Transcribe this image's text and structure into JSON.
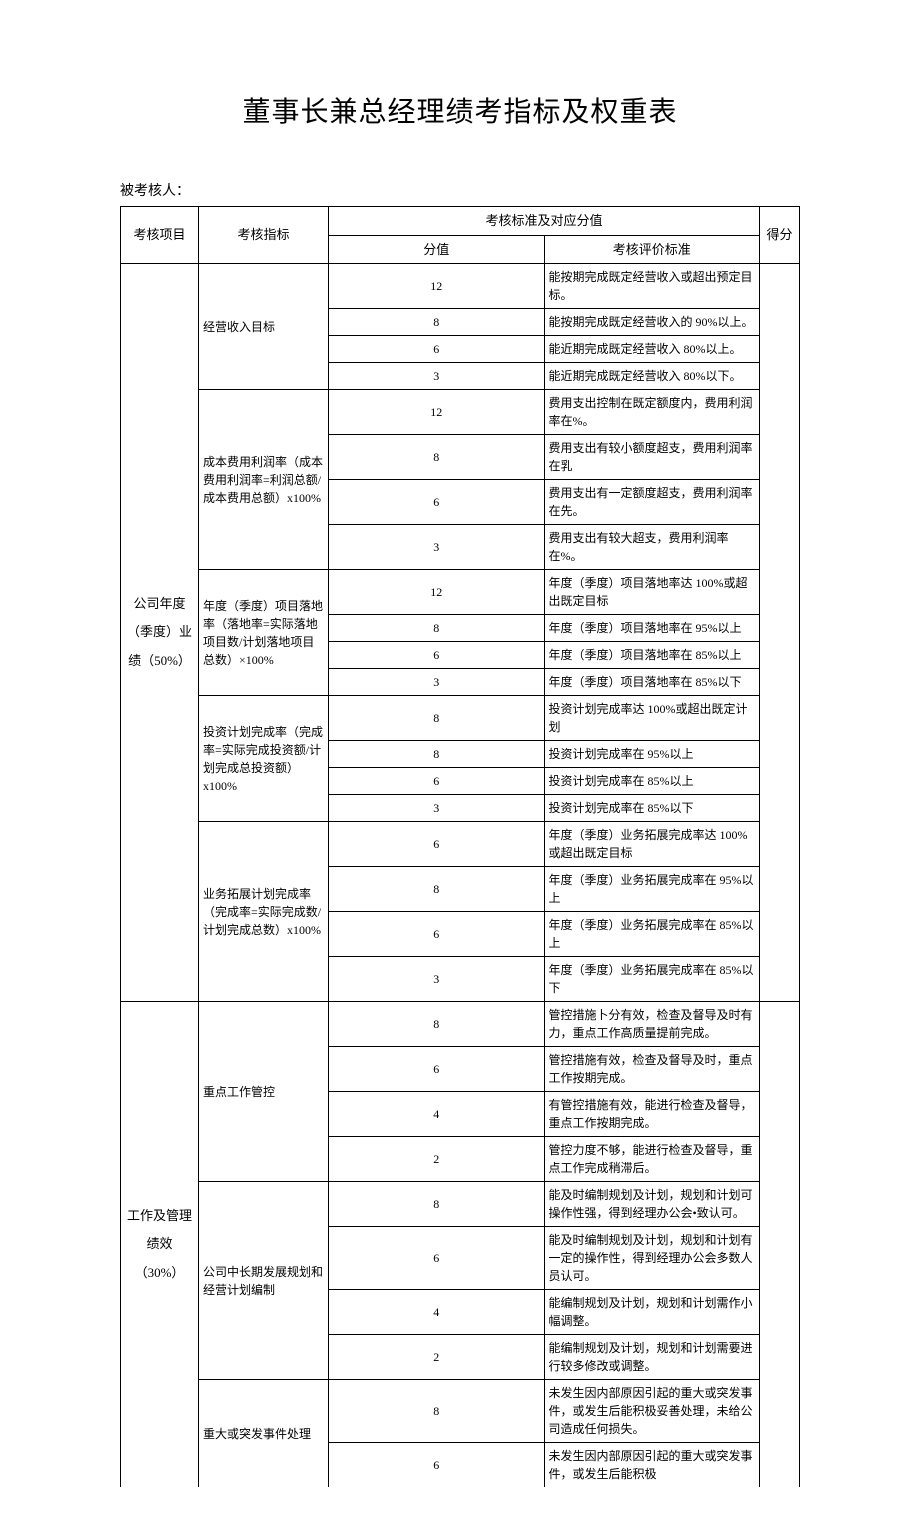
{
  "title": "董事长兼总经理绩考指标及权重表",
  "subtitle": "被考核人：",
  "headers": {
    "project": "考核项目",
    "indicator": "考核指标",
    "standard_group": "考核标准及对应分值",
    "score": "分值",
    "criteria": "考核评价标准",
    "final": "得分"
  },
  "section1": {
    "project": "公司年度（季度）业绩（50%）",
    "g1": {
      "indicator": "经营收入目标",
      "rows": [
        {
          "s": "12",
          "c": "能按期完成既定经营收入或超出预定目标。"
        },
        {
          "s": "8",
          "c": "能按期完成既定经营收入的 90%以上。"
        },
        {
          "s": "6",
          "c": "能近期完成既定经营收入 80%以上。"
        },
        {
          "s": "3",
          "c": "能近期完成既定经营收入 80%以下。"
        }
      ]
    },
    "g2": {
      "indicator": "成本费用利润率（成本费用利润率=利润总额/成本费用总额）x100%",
      "rows": [
        {
          "s": "12",
          "c": "费用支出控制在既定额度内，费用利润率在%。"
        },
        {
          "s": "8",
          "c": "费用支出有较小额度超支，费用利润率在乳"
        },
        {
          "s": "6",
          "c": "费用支出有一定额度超支，费用利润率在先。"
        },
        {
          "s": "3",
          "c": "费用支出有较大超支，费用利润率在%。"
        }
      ]
    },
    "g3": {
      "indicator": "年度（季度）项目落地率（落地率=实际落地项目数/计划落地项目总数）×100%",
      "rows": [
        {
          "s": "12",
          "c": "年度（季度）项目落地率达 100%或超出既定目标"
        },
        {
          "s": "8",
          "c": "年度（季度）项目落地率在 95%以上"
        },
        {
          "s": "6",
          "c": "年度（季度）项目落地率在 85%以上"
        },
        {
          "s": "3",
          "c": "年度（季度）项目落地率在 85%以下"
        }
      ]
    },
    "g4": {
      "indicator": "投资计划完成率（完成率=实际完成投资额/计划完成总投资额）x100%",
      "rows": [
        {
          "s": "8",
          "c": "投资计划完成率达 100%或超出既定计划"
        },
        {
          "s": "8",
          "c": "投资计划完成率在 95%以上"
        },
        {
          "s": "6",
          "c": "投资计划完成率在 85%以上"
        },
        {
          "s": "3",
          "c": "投资计划完成率在 85%以下"
        }
      ]
    },
    "g5": {
      "indicator": "业务拓展计划完成率（完成率=实际完成数/计划完成总数）x100%",
      "rows": [
        {
          "s": "6",
          "c": "年度（季度）业务拓展完成率达 100%或超出既定目标"
        },
        {
          "s": "8",
          "c": "年度（季度）业务拓展完成率在 95%以上"
        },
        {
          "s": "6",
          "c": "年度（季度）业务拓展完成率在 85%以上"
        },
        {
          "s": "3",
          "c": "年度（季度）业务拓展完成率在 85%以下"
        }
      ]
    }
  },
  "section2": {
    "project": "工作及管理绩效（30%）",
    "g1": {
      "indicator": "重点工作管控",
      "rows": [
        {
          "s": "8",
          "c": "管控措施卜分有效，检查及督导及时有力，重点工作高质量提前完成。"
        },
        {
          "s": "6",
          "c": "管控措施有效，检查及督导及时，重点工作按期完成。"
        },
        {
          "s": "4",
          "c": "有管控措施有效，能进行检查及督导，重点工作按期完成。"
        },
        {
          "s": "2",
          "c": "管控力度不够，能进行检查及督导，重点工作完成稍滞后。"
        }
      ]
    },
    "g2": {
      "indicator": "公司中长期发展规划和经营计划编制",
      "rows": [
        {
          "s": "8",
          "c": "能及时编制规划及计划，规划和计划可操作性强，得到经理办公会•致认可。"
        },
        {
          "s": "6",
          "c": "能及时编制规划及计划，规划和计划有一定的操作性，得到经理办公会多数人员认可。"
        },
        {
          "s": "4",
          "c": "能编制规划及计划，规划和计划需作小幅调整。"
        },
        {
          "s": "2",
          "c": "能编制规划及计划，规划和计划需要进行较多修改或调整。"
        }
      ]
    },
    "g3": {
      "indicator": "重大或突发事件处理",
      "rows": [
        {
          "s": "8",
          "c": "未发生因内部原因引起的重大或突发事件，或发生后能积极妥善处理，未给公司造成任何损失。"
        },
        {
          "s": "6",
          "c": "未发生因内部原因引起的重大或突发事件，或发生后能积极"
        }
      ]
    }
  }
}
